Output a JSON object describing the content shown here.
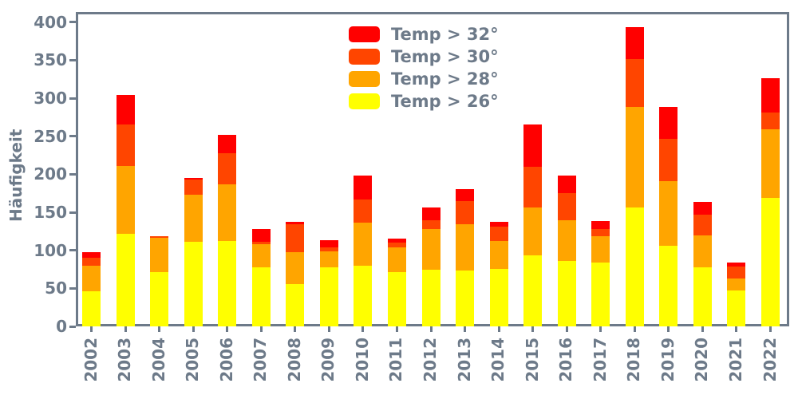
{
  "figure": {
    "background_color": "#ffffff",
    "text_color": "#6d7a89",
    "spine_color": "#6d7a89"
  },
  "chart_data": {
    "type": "bar",
    "stacked": true,
    "title": "",
    "xlabel": "",
    "ylabel": "Häufigkeit",
    "ylim": [
      0,
      413
    ],
    "yticks": [
      0,
      50,
      100,
      150,
      200,
      250,
      300,
      350,
      400
    ],
    "grid": false,
    "legend_position": "upper center, inside plot, no frame, order top-to-bottom 32/30/28/26",
    "categories": [
      "2002",
      "2003",
      "2004",
      "2005",
      "2006",
      "2007",
      "2008",
      "2009",
      "2010",
      "2011",
      "2012",
      "2013",
      "2014",
      "2015",
      "2016",
      "2017",
      "2018",
      "2019",
      "2020",
      "2021",
      "2022"
    ],
    "series": [
      {
        "name": "Temp > 26°",
        "color": "#FFFF00",
        "values": [
          46,
          122,
          71,
          111,
          112,
          78,
          56,
          78,
          80,
          71,
          75,
          73,
          76,
          93,
          86,
          84,
          156,
          106,
          78,
          47,
          169
        ]
      },
      {
        "name": "Temp > 28°",
        "color": "#FFA500",
        "values": [
          34,
          89,
          45,
          62,
          75,
          30,
          42,
          21,
          56,
          33,
          53,
          61,
          36,
          63,
          54,
          35,
          133,
          85,
          42,
          16,
          90
        ]
      },
      {
        "name": "Temp > 30°",
        "color": "#FF4500",
        "values": [
          10,
          55,
          3,
          20,
          41,
          3,
          36,
          5,
          31,
          6,
          12,
          31,
          19,
          54,
          35,
          9,
          63,
          56,
          27,
          16,
          22
        ]
      },
      {
        "name": "Temp > 32°",
        "color": "#FF0000",
        "values": [
          8,
          38,
          0,
          2,
          24,
          17,
          4,
          9,
          31,
          5,
          16,
          16,
          6,
          56,
          23,
          11,
          42,
          42,
          17,
          5,
          45
        ]
      }
    ],
    "totals": [
      98,
      304,
      119,
      195,
      252,
      128,
      138,
      113,
      198,
      115,
      156,
      181,
      137,
      266,
      198,
      139,
      394,
      289,
      164,
      84,
      326
    ]
  }
}
